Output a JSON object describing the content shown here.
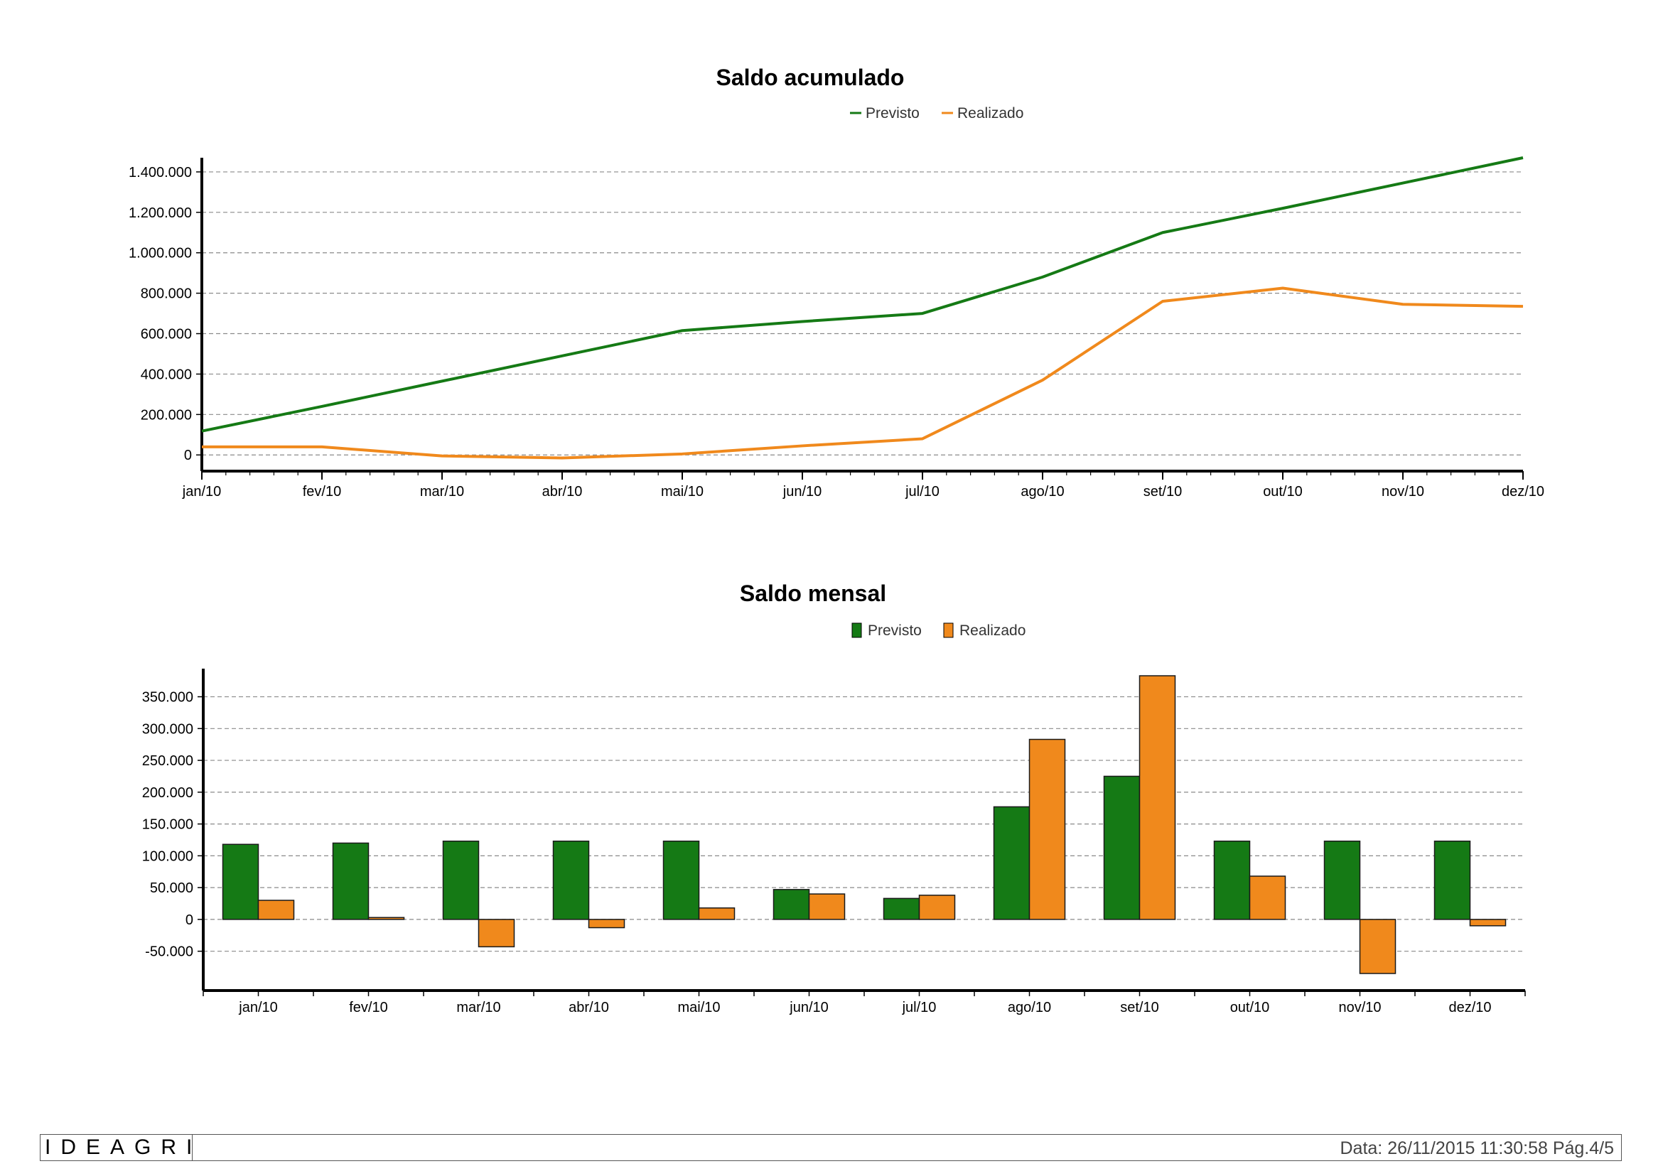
{
  "chart_data": [
    {
      "type": "line",
      "title": "Saldo acumulado",
      "categories": [
        "jan/10",
        "fev/10",
        "mar/10",
        "abr/10",
        "mai/10",
        "jun/10",
        "jul/10",
        "ago/10",
        "set/10",
        "out/10",
        "nov/10",
        "dez/10"
      ],
      "series": [
        {
          "name": "Previsto",
          "color": "#157a15",
          "values": [
            118000,
            240000,
            365000,
            490000,
            615000,
            660000,
            700000,
            880000,
            1100000,
            1220000,
            1345000,
            1470000
          ]
        },
        {
          "name": "Realizado",
          "color": "#f0891c",
          "values": [
            40000,
            40000,
            -5000,
            -15000,
            5000,
            45000,
            80000,
            370000,
            760000,
            825000,
            745000,
            735000
          ]
        }
      ],
      "y_ticks": [
        "0",
        "200.000",
        "400.000",
        "600.000",
        "800.000",
        "1.000.000",
        "1.200.000",
        "1.400.000"
      ],
      "ylim": [
        -80000,
        1470000
      ],
      "grid": true,
      "legend": "top-center"
    },
    {
      "type": "bar",
      "title": "Saldo mensal",
      "categories": [
        "jan/10",
        "fev/10",
        "mar/10",
        "abr/10",
        "mai/10",
        "jun/10",
        "jul/10",
        "ago/10",
        "set/10",
        "out/10",
        "nov/10",
        "dez/10"
      ],
      "series": [
        {
          "name": "Previsto",
          "color": "#157a15",
          "values": [
            118000,
            120000,
            123000,
            123000,
            123000,
            47000,
            33000,
            177000,
            225000,
            123000,
            123000,
            123000
          ]
        },
        {
          "name": "Realizado",
          "color": "#f0891c",
          "values": [
            30000,
            3000,
            -43000,
            -13000,
            18000,
            40000,
            38000,
            283000,
            383000,
            68000,
            -85000,
            -10000
          ]
        }
      ],
      "y_ticks": [
        "-50.000",
        "0",
        "50.000",
        "100.000",
        "150.000",
        "200.000",
        "250.000",
        "300.000",
        "350.000"
      ],
      "ylim": [
        -85000,
        383000
      ],
      "grid": true,
      "legend": "top-center"
    }
  ],
  "footer": {
    "logo": "IDEAGRI",
    "text": "Data: 26/11/2015 11:30:58 Pág.4/5"
  }
}
